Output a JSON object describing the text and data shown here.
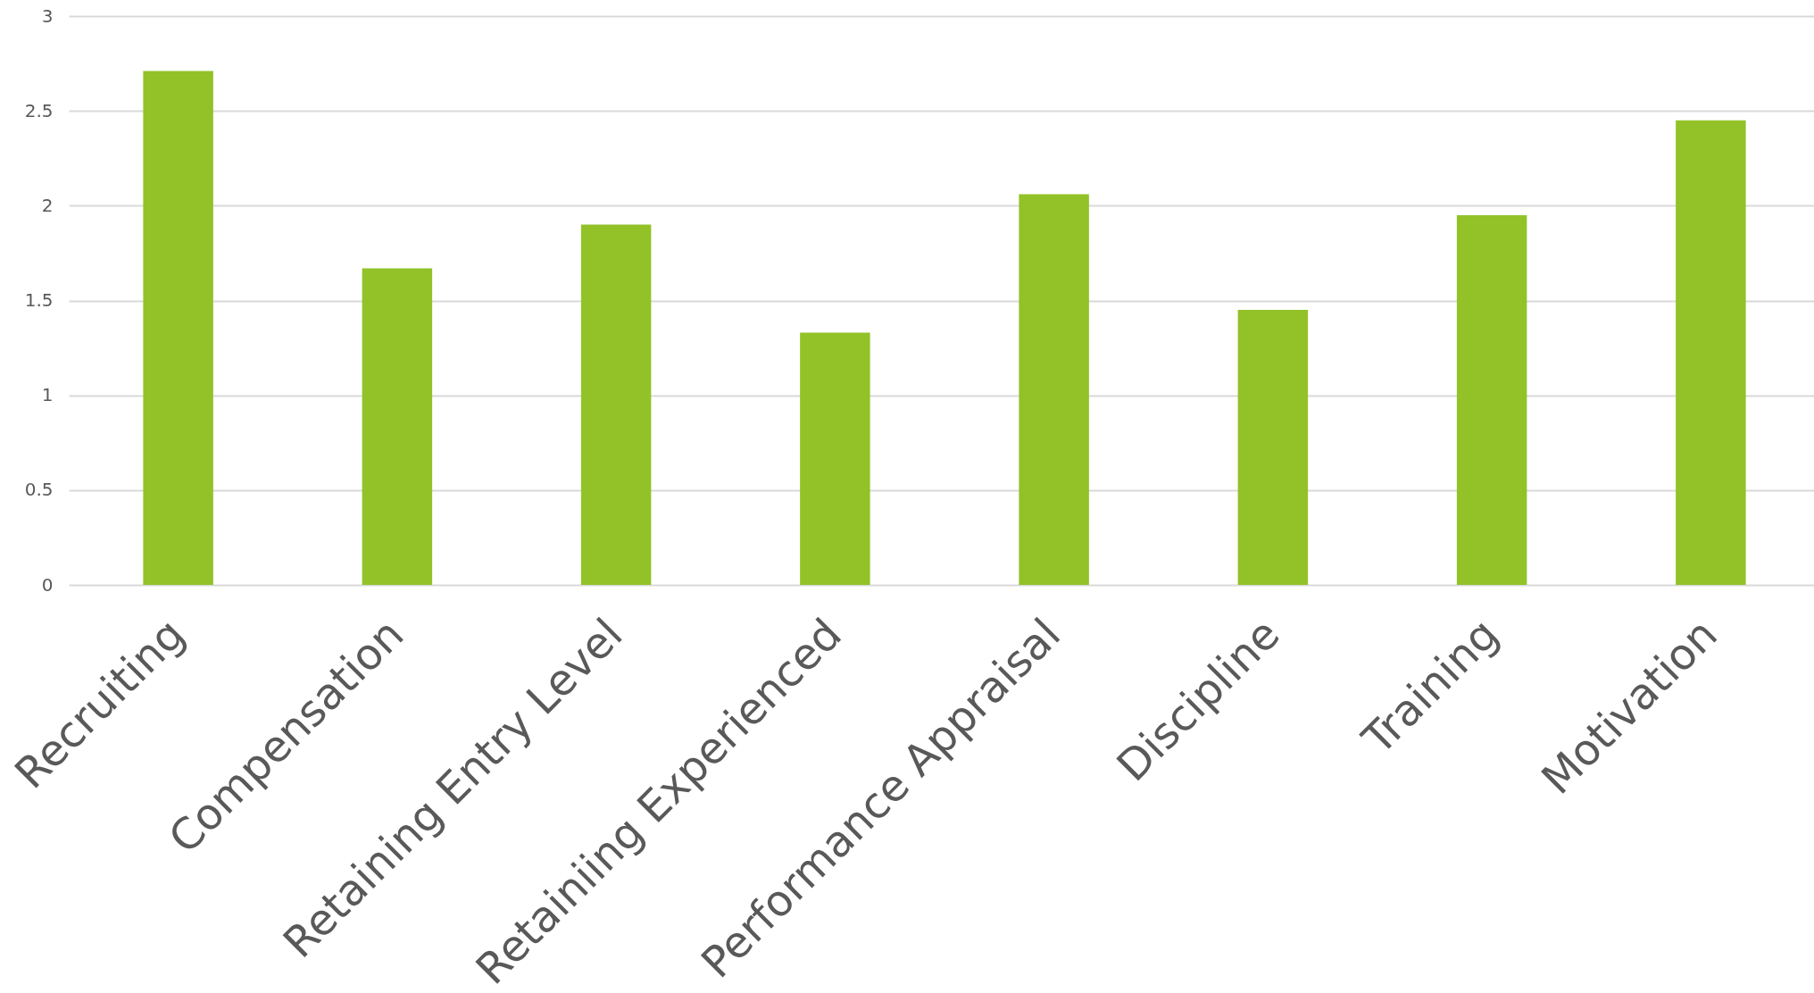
{
  "chart_data": {
    "type": "bar",
    "categories": [
      "Recruiting",
      "Compensation",
      "Retaining Entry Level",
      "Retainiing Experienced",
      "Performance Appraisal",
      "Discipline",
      "Training",
      "Motivation"
    ],
    "values": [
      2.71,
      1.67,
      1.9,
      1.33,
      2.06,
      1.45,
      1.95,
      2.45
    ],
    "color": "#92c228",
    "ylim": [
      0,
      3
    ],
    "yticks": [
      0,
      0.5,
      1,
      1.5,
      2,
      2.5,
      3
    ],
    "grid": "y"
  }
}
